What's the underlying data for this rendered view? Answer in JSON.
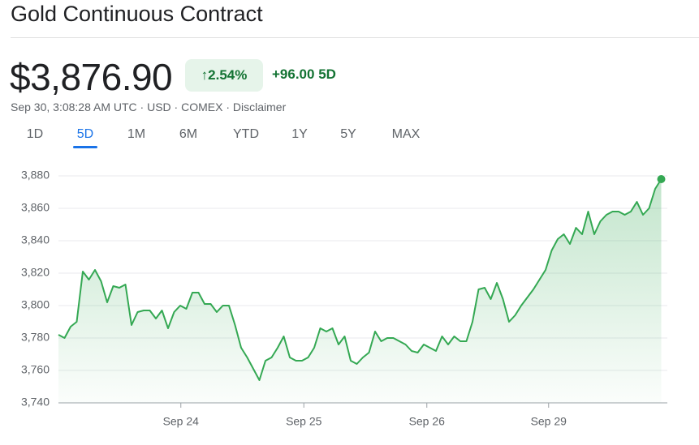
{
  "header": {
    "title": "Gold Continuous Contract",
    "price": "$3,876.90",
    "change_percent": "2.54%",
    "change_abs": "+96.00",
    "change_period": "5D",
    "meta": [
      "Sep 30, 3:08:28 AM UTC",
      "USD",
      "COMEX",
      "Disclaimer"
    ]
  },
  "tabs": [
    "1D",
    "5D",
    "1M",
    "6M",
    "YTD",
    "1Y",
    "5Y",
    "MAX"
  ],
  "selected_tab": 1,
  "chart_data": {
    "type": "area",
    "color": "#34a853",
    "grid": true,
    "values": [
      3782,
      3780,
      3787,
      3790,
      3821,
      3816,
      3822,
      3815,
      3802,
      3812,
      3811,
      3813,
      3788,
      3796,
      3797,
      3797,
      3792,
      3797,
      3786,
      3796,
      3800,
      3798,
      3808,
      3808,
      3801,
      3801,
      3796,
      3800,
      3800,
      3788,
      3774,
      3768,
      3761,
      3754,
      3766,
      3768,
      3774,
      3781,
      3768,
      3766,
      3766,
      3768,
      3774,
      3786,
      3784,
      3786,
      3776,
      3781,
      3766,
      3764,
      3768,
      3771,
      3784,
      3778,
      3780,
      3780,
      3778,
      3776,
      3772,
      3771,
      3776,
      3774,
      3772,
      3781,
      3776,
      3781,
      3778,
      3778,
      3790,
      3810,
      3811,
      3804,
      3814,
      3804,
      3790,
      3794,
      3800,
      3805,
      3810,
      3816,
      3822,
      3834,
      3841,
      3844,
      3838,
      3848,
      3844,
      3858,
      3844,
      3852,
      3856,
      3858,
      3858,
      3856,
      3858,
      3864,
      3856,
      3860,
      3872,
      3878
    ],
    "xlim": [
      0,
      100
    ],
    "xticks": [
      {
        "value": 20.1,
        "label": "Sep 24"
      },
      {
        "value": 40.3,
        "label": "Sep 25"
      },
      {
        "value": 60.5,
        "label": "Sep 26"
      },
      {
        "value": 80.5,
        "label": "Sep 29"
      }
    ],
    "ylim": [
      3740,
      3886
    ],
    "yticks": [
      {
        "value": 3740,
        "label": "3,740"
      },
      {
        "value": 3760,
        "label": "3,760"
      },
      {
        "value": 3780,
        "label": "3,780"
      },
      {
        "value": 3800,
        "label": "3,800"
      },
      {
        "value": 3820,
        "label": "3,820"
      },
      {
        "value": 3840,
        "label": "3,840"
      },
      {
        "value": 3860,
        "label": "3,860"
      },
      {
        "value": 3880,
        "label": "3,880"
      }
    ]
  }
}
